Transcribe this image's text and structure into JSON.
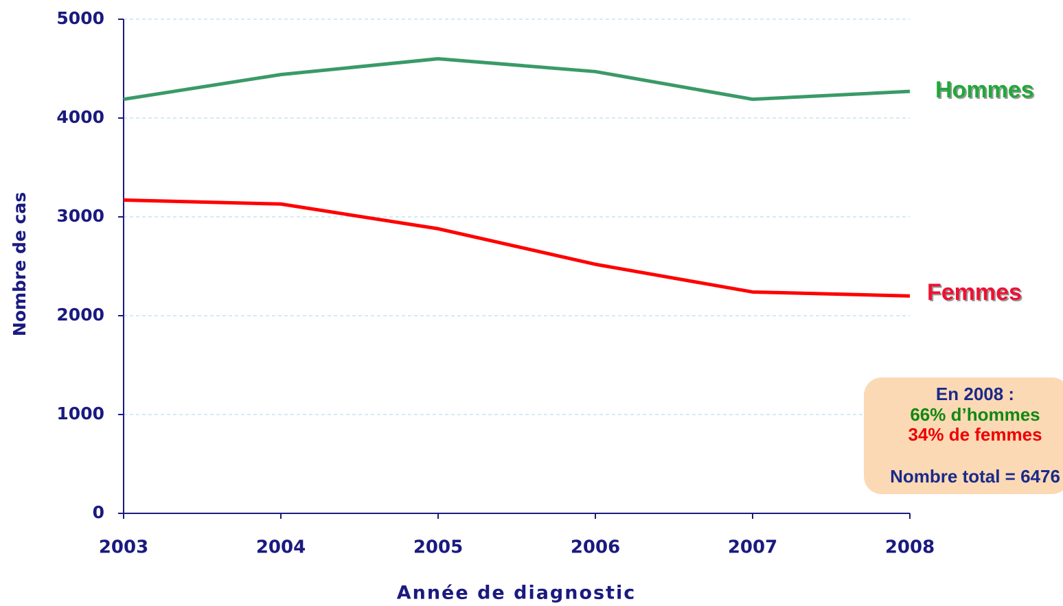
{
  "chart_data": {
    "type": "line",
    "x_label": "Année de diagnostic",
    "y_label": "Nombre de cas",
    "x": [
      2003,
      2004,
      2005,
      2006,
      2007,
      2008
    ],
    "xlim": [
      2003,
      2008
    ],
    "xticks": [
      2003,
      2004,
      2005,
      2006,
      2007,
      2008
    ],
    "ylim": [
      0,
      5000
    ],
    "yticks": [
      0,
      1000,
      2000,
      3000,
      4000,
      5000
    ],
    "grid": true,
    "series": [
      {
        "name": "Hommes",
        "color": "#3a9a68",
        "label_color": "#22a83a",
        "values": [
          4190,
          4440,
          4600,
          4470,
          4190,
          4270
        ]
      },
      {
        "name": "Femmes",
        "color": "#ff0000",
        "label_color": "#ee1133",
        "values": [
          3170,
          3130,
          2880,
          2520,
          2240,
          2200
        ]
      }
    ],
    "annotation": {
      "lines": [
        "En 2008 :",
        "66% d’hommes",
        "34% de femmes",
        "Nombre total = 6476"
      ],
      "colors": [
        "#1a2a8a",
        "#118811",
        "#ee0000",
        "#1a2a8a"
      ],
      "background": "#fcd9b5"
    }
  }
}
